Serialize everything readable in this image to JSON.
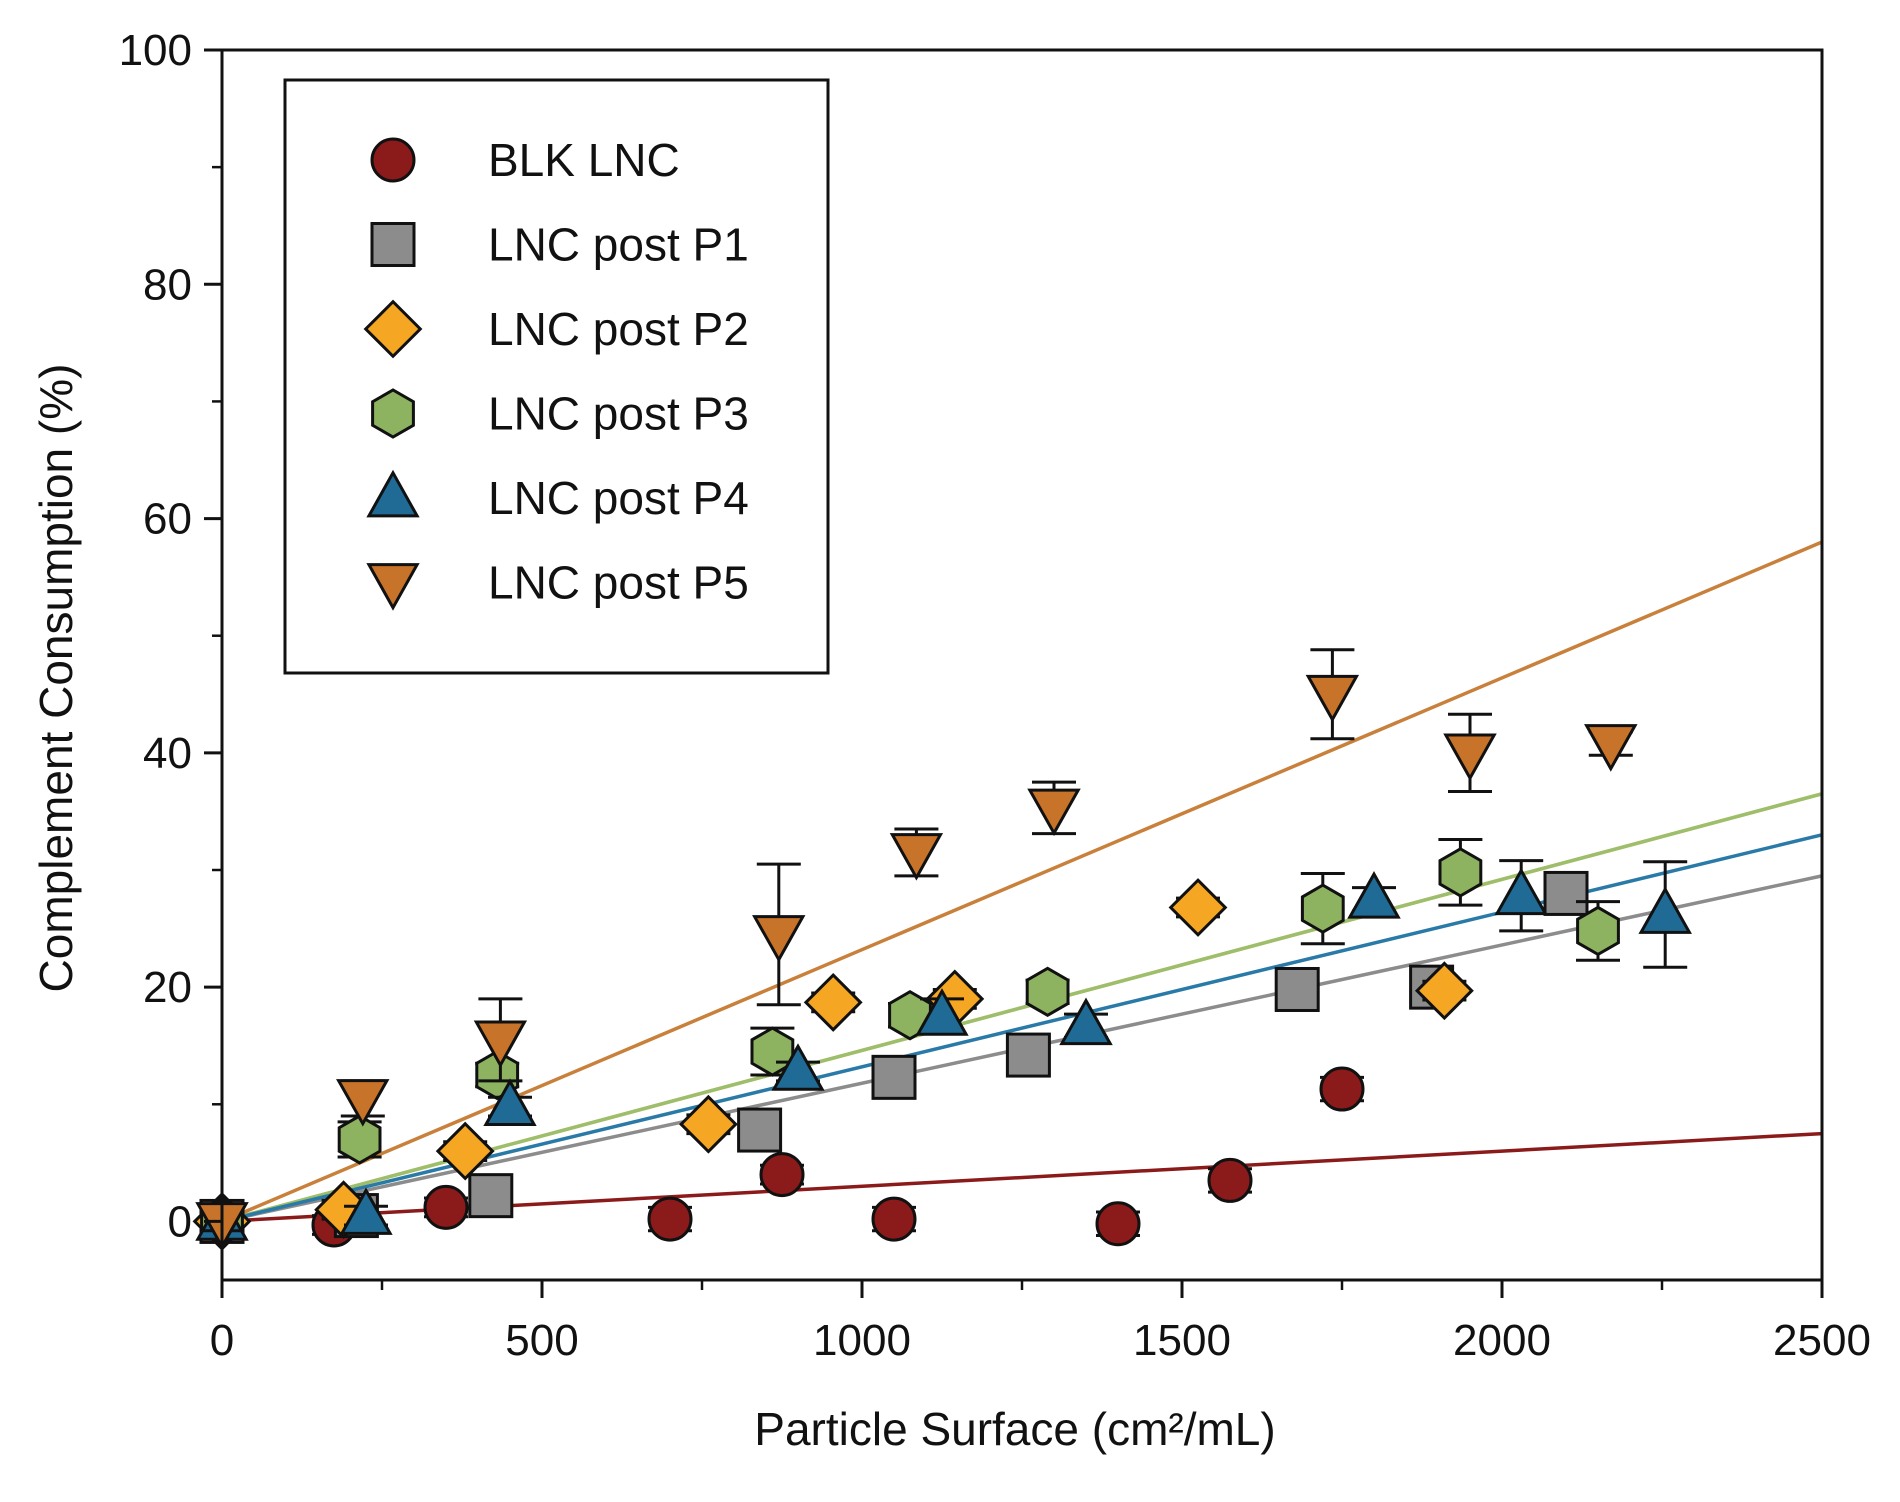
{
  "chart_data": {
    "type": "scatter",
    "title": "",
    "xlabel": "Particle Surface (cm²/mL)",
    "ylabel": "Complement Consumption (%)",
    "xlim": [
      0,
      2500
    ],
    "ylim": [
      -5,
      100
    ],
    "xticks": [
      0,
      500,
      1000,
      1500,
      2000,
      2500
    ],
    "yticks": [
      0,
      20,
      40,
      60,
      80,
      100
    ],
    "legend_position": "top-left",
    "series": [
      {
        "name": "BLK LNC",
        "marker": "circle",
        "color": "#8b1a1a",
        "line_color": "#8b1a1a",
        "fit_end": 7.5,
        "points": [
          {
            "x": 0,
            "y": 0,
            "err": 0.8
          },
          {
            "x": 175,
            "y": -0.3,
            "err": 0.8
          },
          {
            "x": 350,
            "y": 1.2,
            "err": 0.8
          },
          {
            "x": 700,
            "y": 0.2,
            "err": 1.0
          },
          {
            "x": 875,
            "y": 4.0,
            "err": 0.8
          },
          {
            "x": 1050,
            "y": 0.2,
            "err": 1.0
          },
          {
            "x": 1400,
            "y": -0.2,
            "err": 1.0
          },
          {
            "x": 1575,
            "y": 3.5,
            "err": 1.0
          },
          {
            "x": 1750,
            "y": 11.3,
            "err": 1.0
          }
        ]
      },
      {
        "name": "LNC post P1",
        "marker": "square",
        "color": "#8c8c8c",
        "line_color": "#8c8c8c",
        "fit_end": 29.5,
        "points": [
          {
            "x": 0,
            "y": 0,
            "err": 0.8
          },
          {
            "x": 210,
            "y": 0.5,
            "err": 0.8
          },
          {
            "x": 420,
            "y": 2.2,
            "err": 0.8
          },
          {
            "x": 840,
            "y": 7.8,
            "err": 1.0
          },
          {
            "x": 1050,
            "y": 12.3,
            "err": 1.0
          },
          {
            "x": 1260,
            "y": 14.2,
            "err": 1.5
          },
          {
            "x": 1680,
            "y": 19.8,
            "err": 1.0
          },
          {
            "x": 1890,
            "y": 20.0,
            "err": 1.0
          },
          {
            "x": 2100,
            "y": 28.0,
            "err": 1.0
          }
        ]
      },
      {
        "name": "LNC post P2",
        "marker": "diamond",
        "color": "#f5a623",
        "line_color": "#f5a623",
        "fit_end": 36.5,
        "points": [
          {
            "x": 0,
            "y": 0,
            "err": 0.8
          },
          {
            "x": 190,
            "y": 1.0,
            "err": 0.8
          },
          {
            "x": 380,
            "y": 6.0,
            "err": 0.8
          },
          {
            "x": 760,
            "y": 8.3,
            "err": 0.8
          },
          {
            "x": 955,
            "y": 18.7,
            "err": 0.8
          },
          {
            "x": 1145,
            "y": 19.0,
            "err": 0.8
          },
          {
            "x": 1525,
            "y": 26.8,
            "err": 0.8
          },
          {
            "x": 1910,
            "y": 19.7,
            "err": 0.8
          }
        ]
      },
      {
        "name": "LNC post P3",
        "marker": "hexagon",
        "color": "#8db360",
        "line_color": "#9cbf6e",
        "fit_end": 36.5,
        "points": [
          {
            "x": 0,
            "y": 0,
            "err": 0.8
          },
          {
            "x": 215,
            "y": 7.0,
            "err": 1.5
          },
          {
            "x": 430,
            "y": 12.5,
            "err": 1.0
          },
          {
            "x": 860,
            "y": 14.5,
            "err": 2.0
          },
          {
            "x": 1075,
            "y": 17.6,
            "err": 1.0
          },
          {
            "x": 1290,
            "y": 19.6,
            "err": 1.0
          },
          {
            "x": 1720,
            "y": 26.7,
            "err": 3.0
          },
          {
            "x": 1935,
            "y": 29.8,
            "err": 2.8
          },
          {
            "x": 2150,
            "y": 24.8,
            "err": 2.5
          }
        ]
      },
      {
        "name": "LNC post P4",
        "marker": "triangle-up",
        "color": "#1f6b96",
        "line_color": "#2a7aa8",
        "fit_end": 33.0,
        "points": [
          {
            "x": 0,
            "y": 0,
            "err": 0.8
          },
          {
            "x": 225,
            "y": 0.5,
            "err": 0.8
          },
          {
            "x": 450,
            "y": 9.8,
            "err": 0.8
          },
          {
            "x": 900,
            "y": 12.8,
            "err": 0.8
          },
          {
            "x": 1125,
            "y": 17.5,
            "err": 1.5
          },
          {
            "x": 1350,
            "y": 16.7,
            "err": 1.0
          },
          {
            "x": 1800,
            "y": 27.5,
            "err": 1.0
          },
          {
            "x": 2030,
            "y": 27.8,
            "err": 3.0
          },
          {
            "x": 2255,
            "y": 26.2,
            "err": 4.5
          }
        ]
      },
      {
        "name": "LNC post P5",
        "marker": "triangle-down",
        "color": "#c8732a",
        "line_color": "#c8803a",
        "fit_end": 58.0,
        "points": [
          {
            "x": 0,
            "y": 0,
            "err": 0.8
          },
          {
            "x": 220,
            "y": 10.5,
            "err": 1.5
          },
          {
            "x": 435,
            "y": 15.5,
            "err": 3.5
          },
          {
            "x": 870,
            "y": 24.5,
            "err": 6.0
          },
          {
            "x": 1085,
            "y": 31.5,
            "err": 2.0
          },
          {
            "x": 1300,
            "y": 35.3,
            "err": 2.2
          },
          {
            "x": 1735,
            "y": 45.0,
            "err": 3.8
          },
          {
            "x": 1950,
            "y": 40.0,
            "err": 3.3
          },
          {
            "x": 2170,
            "y": 40.8,
            "err": 1.0
          }
        ]
      }
    ]
  }
}
